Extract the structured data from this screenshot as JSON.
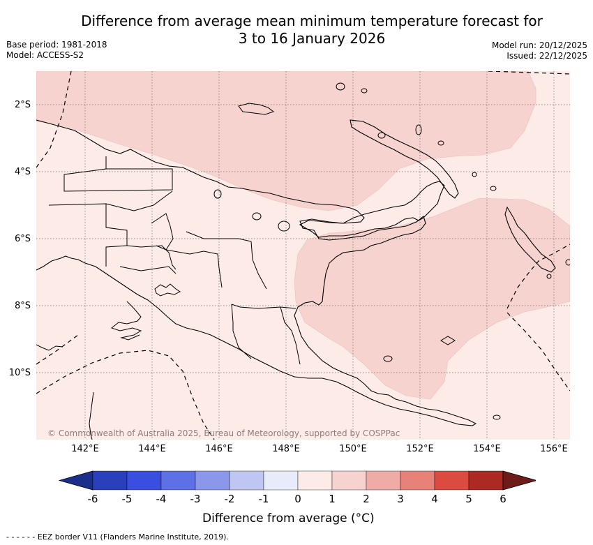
{
  "title_line1": "Difference from average mean minimum temperature forecast for",
  "title_line2": "3 to 16 January 2026",
  "base_period": "Base period: 1981-2018",
  "model": "Model: ACCESS-S2",
  "model_run": "Model run: 20/12/2025",
  "issued": "Issued: 22/12/2025",
  "copyright": "© Commonwealth of Australia 2025, Bureau of Meteorology, supported by COSPPac",
  "lon_labels": [
    "142°E",
    "144°E",
    "146°E",
    "148°E",
    "150°E",
    "152°E",
    "154°E",
    "156°E"
  ],
  "lat_labels": [
    "2°S",
    "4°S",
    "6°S",
    "8°S",
    "10°S"
  ],
  "colorbar": {
    "title": "Difference from average (°C)",
    "ticks": [
      "-6",
      "-5",
      "-4",
      "-3",
      "-2",
      "-1",
      "0",
      "1",
      "2",
      "3",
      "4",
      "5",
      "6"
    ],
    "colors": [
      "#1c2e8c",
      "#2a3fbc",
      "#3a4fe0",
      "#5d70e6",
      "#8a97ea",
      "#bfc6f2",
      "#e8ebfa",
      "#fdebe8",
      "#f6d3cf",
      "#efaba5",
      "#e78279",
      "#dc4b3f",
      "#ad2a24",
      "#6d1c1a"
    ]
  },
  "footer": "- -  - -  - - EEZ border V11 (Flanders Marine Institute, 2019)."
}
